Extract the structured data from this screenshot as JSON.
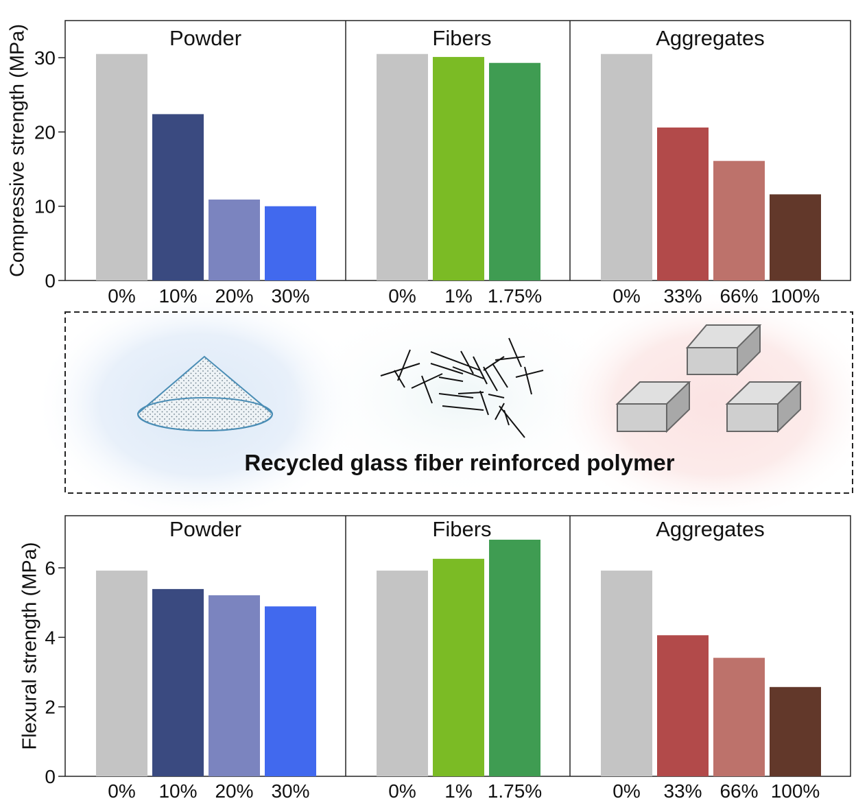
{
  "chart_data": [
    {
      "type": "bar",
      "ylabel": "Compressive strength (MPa)",
      "ylim": [
        0,
        35
      ],
      "yticks": [
        0,
        10,
        20,
        30
      ],
      "panels": [
        {
          "title": "Powder",
          "categories": [
            "0%",
            "10%",
            "20%",
            "30%"
          ],
          "values": [
            30.5,
            22.4,
            10.9,
            10.0
          ],
          "colors": [
            "#c4c4c4",
            "#3a4a80",
            "#7b84bf",
            "#4169ee"
          ]
        },
        {
          "title": "Fibers",
          "categories": [
            "0%",
            "1%",
            "1.75%"
          ],
          "values": [
            30.5,
            30.1,
            29.3
          ],
          "colors": [
            "#c4c4c4",
            "#7bbb25",
            "#3f9c52"
          ]
        },
        {
          "title": "Aggregates",
          "categories": [
            "0%",
            "33%",
            "66%",
            "100%"
          ],
          "values": [
            30.5,
            20.6,
            16.1,
            11.6
          ],
          "colors": [
            "#c4c4c4",
            "#b24a4a",
            "#bd726b",
            "#62382a"
          ]
        }
      ]
    },
    {
      "type": "bar",
      "ylabel": "Flexural strength (MPa)",
      "ylim": [
        0,
        7.5
      ],
      "yticks": [
        0,
        2,
        4,
        6
      ],
      "panels": [
        {
          "title": "Powder",
          "categories": [
            "0%",
            "10%",
            "20%",
            "30%"
          ],
          "values": [
            5.92,
            5.39,
            5.21,
            4.89
          ],
          "colors": [
            "#c4c4c4",
            "#3a4a80",
            "#7b84bf",
            "#4169ee"
          ]
        },
        {
          "title": "Fibers",
          "categories": [
            "0%",
            "1%",
            "1.75%"
          ],
          "values": [
            5.92,
            6.26,
            6.81
          ],
          "colors": [
            "#c4c4c4",
            "#7bbb25",
            "#3f9c52"
          ]
        },
        {
          "title": "Aggregates",
          "categories": [
            "0%",
            "33%",
            "66%",
            "100%"
          ],
          "values": [
            5.92,
            4.06,
            3.41,
            2.57
          ],
          "colors": [
            "#c4c4c4",
            "#b24a4a",
            "#bd726b",
            "#62382a"
          ]
        }
      ]
    }
  ],
  "diagram": {
    "caption": "Recycled glass fiber reinforced polymer"
  }
}
